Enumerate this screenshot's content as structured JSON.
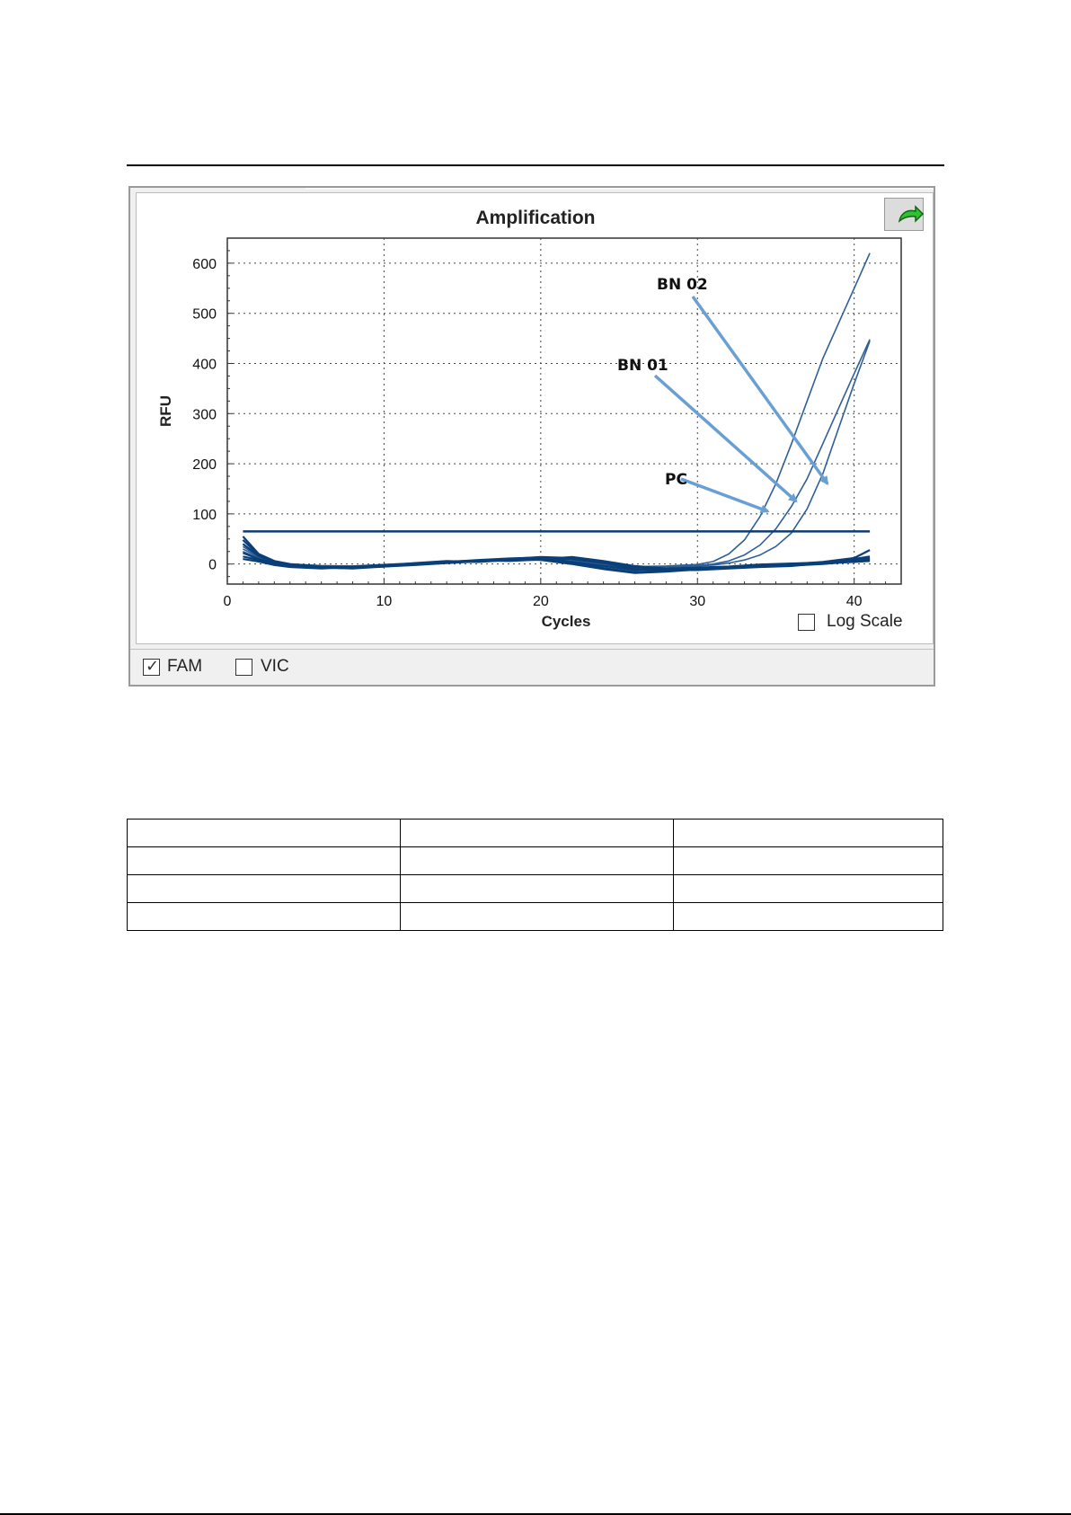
{
  "chart_data": {
    "type": "line",
    "title": "Amplification",
    "xlabel": "Cycles",
    "ylabel": "RFU",
    "xlim": [
      0,
      43
    ],
    "ylim": [
      -40,
      650
    ],
    "xticks": [
      0,
      10,
      20,
      30,
      40
    ],
    "yticks": [
      0,
      100,
      200,
      300,
      400,
      500,
      600
    ],
    "grid": true,
    "threshold": 65,
    "series": [
      {
        "name": "BN 02",
        "x": [
          1,
          2,
          3,
          4,
          6,
          8,
          10,
          12,
          14,
          16,
          18,
          20,
          22,
          24,
          26,
          28,
          30,
          31,
          32,
          33,
          34,
          35,
          36,
          37,
          38,
          39,
          40,
          41
        ],
        "y": [
          25,
          12,
          3,
          -2,
          -5,
          -6,
          -3,
          0,
          3,
          5,
          8,
          10,
          6,
          -2,
          -8,
          -6,
          -4,
          -2,
          2,
          8,
          18,
          35,
          62,
          110,
          180,
          270,
          360,
          445
        ]
      },
      {
        "name": "BN 01",
        "x": [
          1,
          2,
          3,
          4,
          6,
          8,
          10,
          12,
          14,
          16,
          18,
          20,
          22,
          24,
          26,
          28,
          30,
          31,
          32,
          33,
          34,
          35,
          36,
          37,
          38,
          39,
          40,
          41
        ],
        "y": [
          30,
          14,
          4,
          -1,
          -4,
          -5,
          -2,
          1,
          4,
          6,
          9,
          11,
          7,
          0,
          -6,
          -5,
          -3,
          0,
          6,
          18,
          38,
          70,
          115,
          170,
          240,
          310,
          380,
          448
        ]
      },
      {
        "name": "PC",
        "x": [
          1,
          2,
          3,
          4,
          6,
          8,
          10,
          12,
          14,
          16,
          18,
          20,
          22,
          24,
          26,
          28,
          30,
          31,
          32,
          33,
          34,
          35,
          36,
          37,
          38,
          39,
          40,
          41
        ],
        "y": [
          35,
          15,
          5,
          0,
          -3,
          -4,
          -1,
          2,
          5,
          7,
          10,
          12,
          8,
          1,
          -5,
          -4,
          -1,
          5,
          20,
          48,
          95,
          160,
          240,
          325,
          410,
          480,
          550,
          620
        ]
      },
      {
        "x": [
          1,
          2,
          3,
          4,
          6,
          8,
          10,
          12,
          14,
          16,
          18,
          20,
          22,
          24,
          26,
          28,
          30,
          32,
          34,
          36,
          38,
          40,
          41
        ],
        "y": [
          55,
          20,
          6,
          0,
          -5,
          -6,
          -4,
          -1,
          3,
          6,
          9,
          12,
          10,
          2,
          -10,
          -14,
          -10,
          -7,
          -5,
          -3,
          0,
          5,
          8
        ]
      },
      {
        "x": [
          1,
          2,
          3,
          4,
          6,
          8,
          10,
          12,
          14,
          16,
          18,
          20,
          22,
          24,
          26,
          28,
          30,
          32,
          34,
          36,
          38,
          40,
          41
        ],
        "y": [
          48,
          18,
          4,
          -1,
          -7,
          -9,
          -5,
          -2,
          2,
          5,
          10,
          14,
          12,
          5,
          -6,
          -12,
          -12,
          -9,
          -6,
          -4,
          2,
          10,
          15
        ]
      },
      {
        "x": [
          1,
          2,
          3,
          4,
          6,
          8,
          10,
          12,
          14,
          16,
          18,
          20,
          22,
          24,
          26,
          28,
          30,
          32,
          34,
          36,
          38,
          40,
          41
        ],
        "y": [
          40,
          16,
          5,
          -3,
          -6,
          -7,
          -5,
          0,
          4,
          8,
          11,
          13,
          4,
          -4,
          -12,
          -10,
          -8,
          -6,
          -2,
          0,
          4,
          12,
          28
        ]
      },
      {
        "x": [
          1,
          2,
          3,
          4,
          6,
          8,
          10,
          12,
          14,
          16,
          18,
          20,
          22,
          24,
          26,
          28,
          30,
          32,
          34,
          36,
          38,
          40,
          41
        ],
        "y": [
          22,
          10,
          2,
          -4,
          -8,
          -5,
          -2,
          1,
          5,
          7,
          6,
          9,
          3,
          -8,
          -16,
          -14,
          -9,
          -8,
          -4,
          -2,
          1,
          6,
          10
        ]
      },
      {
        "x": [
          1,
          2,
          3,
          4,
          6,
          8,
          10,
          12,
          14,
          16,
          18,
          20,
          22,
          24,
          26,
          28,
          30,
          32,
          34,
          36,
          38,
          40,
          41
        ],
        "y": [
          15,
          8,
          0,
          -5,
          -6,
          -8,
          -3,
          2,
          6,
          4,
          8,
          10,
          14,
          6,
          -4,
          -9,
          -7,
          -5,
          -1,
          1,
          3,
          7,
          12
        ]
      },
      {
        "x": [
          1,
          2,
          3,
          4,
          6,
          8,
          10,
          12,
          14,
          16,
          18,
          20,
          22,
          24,
          26,
          28,
          30,
          32,
          34,
          36,
          38,
          40,
          41
        ],
        "y": [
          10,
          5,
          -2,
          -6,
          -9,
          -6,
          -4,
          0,
          3,
          6,
          9,
          8,
          0,
          -10,
          -18,
          -15,
          -11,
          -7,
          -3,
          -1,
          2,
          4,
          6
        ]
      }
    ],
    "annotations": [
      "BN 02",
      "BN 01",
      "PC"
    ]
  },
  "controls": {
    "log_scale_label": "Log Scale",
    "fam_label": "FAM",
    "vic_label": "VIC",
    "fam_checked": true,
    "vic_checked": false,
    "log_scale_checked": false
  },
  "colors": {
    "series_dark": "#0b3f78",
    "series_light": "#2e5f97",
    "threshold": "#0d3b70",
    "arrow": "#6a9fd4"
  },
  "icons": {
    "export": "export-arrow-icon"
  }
}
